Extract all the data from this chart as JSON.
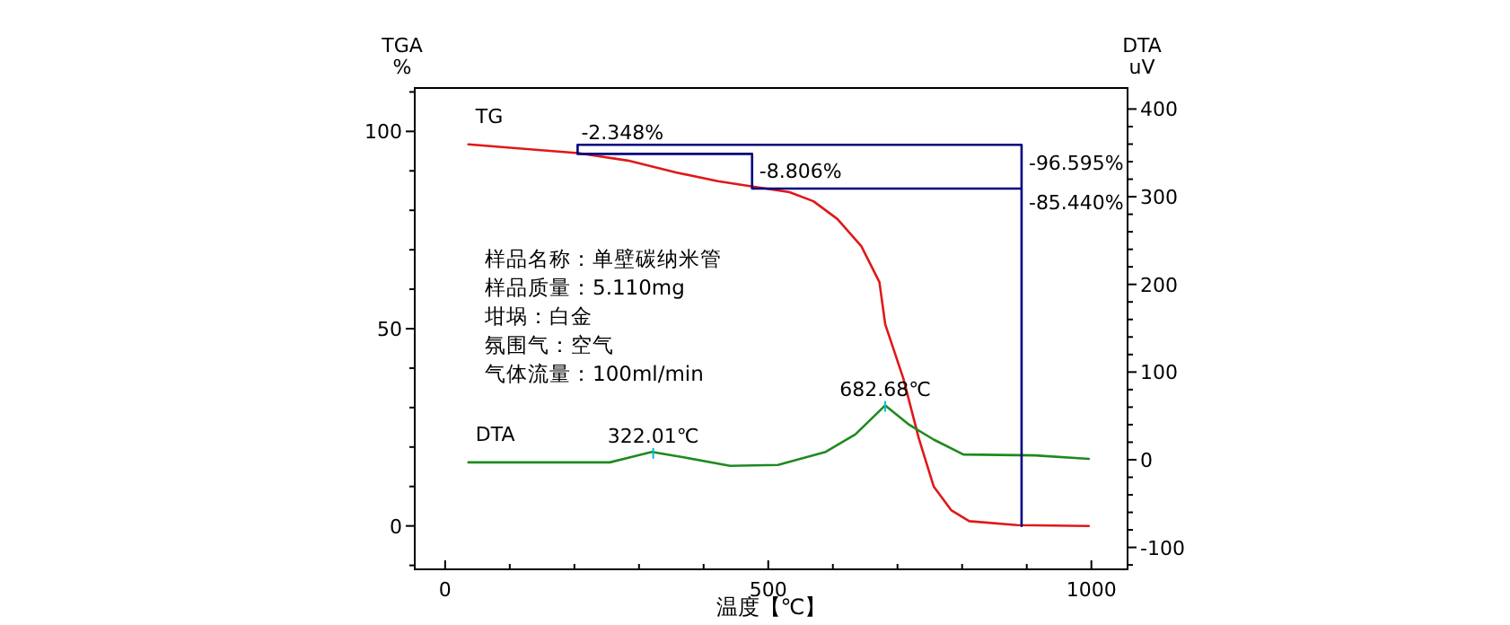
{
  "chart_data": {
    "type": "line",
    "xlabel": "温度【℃】",
    "ylabel": "TGA\n%",
    "y2label": "DTA\nuV",
    "xlim": [
      -47,
      1056
    ],
    "ylim": [
      -11,
      111
    ],
    "y2lim": [
      -125,
      424
    ],
    "xticks": [
      0,
      {
        "value": 100,
        "label": null
      },
      {
        "value": 200,
        "label": null
      },
      {
        "value": 300,
        "label": null
      },
      {
        "value": 400,
        "label": null
      },
      500,
      {
        "value": 600,
        "label": null
      },
      {
        "value": 700,
        "label": null
      },
      {
        "value": 800,
        "label": null
      },
      {
        "value": 900,
        "label": null
      },
      1000
    ],
    "yticks": [
      {
        "value": -10,
        "label": null
      },
      0,
      {
        "value": 10,
        "label": null
      },
      {
        "value": 20,
        "label": null
      },
      {
        "value": 30,
        "label": null
      },
      {
        "value": 40,
        "label": null
      },
      50,
      {
        "value": 60,
        "label": null
      },
      {
        "value": 70,
        "label": null
      },
      {
        "value": 80,
        "label": null
      },
      {
        "value": 90,
        "label": null
      },
      100,
      {
        "value": 110,
        "label": null
      }
    ],
    "y2ticks": [
      {
        "value": -120,
        "label": null
      },
      -100,
      {
        "value": -80,
        "label": null
      },
      {
        "value": -60,
        "label": null
      },
      {
        "value": -40,
        "label": null
      },
      {
        "value": -20,
        "label": null
      },
      0,
      {
        "value": 20,
        "label": null
      },
      {
        "value": 40,
        "label": null
      },
      {
        "value": 60,
        "label": null
      },
      {
        "value": 80,
        "label": null
      },
      100,
      {
        "value": 120,
        "label": null
      },
      {
        "value": 140,
        "label": null
      },
      {
        "value": 160,
        "label": null
      },
      {
        "value": 180,
        "label": null
      },
      200,
      {
        "value": 220,
        "label": null
      },
      {
        "value": 240,
        "label": null
      },
      {
        "value": 260,
        "label": null
      },
      {
        "value": 280,
        "label": null
      },
      300,
      {
        "value": 320,
        "label": null
      },
      {
        "value": 340,
        "label": null
      },
      {
        "value": 360,
        "label": null
      },
      {
        "value": 380,
        "label": null
      },
      400
    ],
    "series": [
      {
        "name": "TG",
        "color": "#e01818",
        "x": [
          36,
          144,
          206,
          283,
          357,
          422,
          476,
          533,
          570,
          607,
          644,
          672,
          681,
          709,
          733,
          756,
          783,
          811,
          885,
          996
        ],
        "values": [
          96.7,
          95.3,
          94.5,
          92.6,
          89.6,
          87.4,
          86.0,
          84.6,
          82.3,
          77.8,
          70.9,
          61.8,
          51.1,
          37.4,
          22.2,
          10.0,
          4.0,
          1.2,
          0.2,
          0
        ]
      },
      {
        "name": "DTA",
        "axis": "y2",
        "color": "#1e8a1e",
        "x": [
          36,
          255,
          320,
          367,
          441,
          515,
          589,
          635,
          681,
          718,
          756,
          802,
          913,
          996
        ],
        "values": [
          -3,
          -3,
          9,
          3,
          -7,
          -6,
          9,
          29,
          62,
          40,
          23,
          6,
          5,
          1
        ]
      },
      {
        "color": "#000080",
        "x": [
          205,
          892,
          892,
          null,
          205,
          205,
          475,
          475,
          892
        ],
        "values": [
          96.6,
          96.6,
          0,
          null,
          96.6,
          94.3,
          94.3,
          85.5,
          85.5
        ]
      }
    ],
    "annotations": [
      {
        "text": "-2.348%",
        "x": 205,
        "y": 96.6
      },
      {
        "text": "-8.806%",
        "x": 475,
        "y": 90
      },
      {
        "text": "-96.595%",
        "x": 892,
        "y": 92
      },
      {
        "text": "-85.440%",
        "x": 892,
        "y": 82
      },
      {
        "text": "322.01℃",
        "x": 322,
        "y": 18.4
      },
      {
        "text": "682.68℃",
        "x": 681,
        "y": 30.3
      },
      "样品名称：单壁碳纳米管",
      "样品质量：5.110mg",
      "坩埚：白金",
      "氛围气：空气",
      "气体流量：100ml/min"
    ]
  }
}
